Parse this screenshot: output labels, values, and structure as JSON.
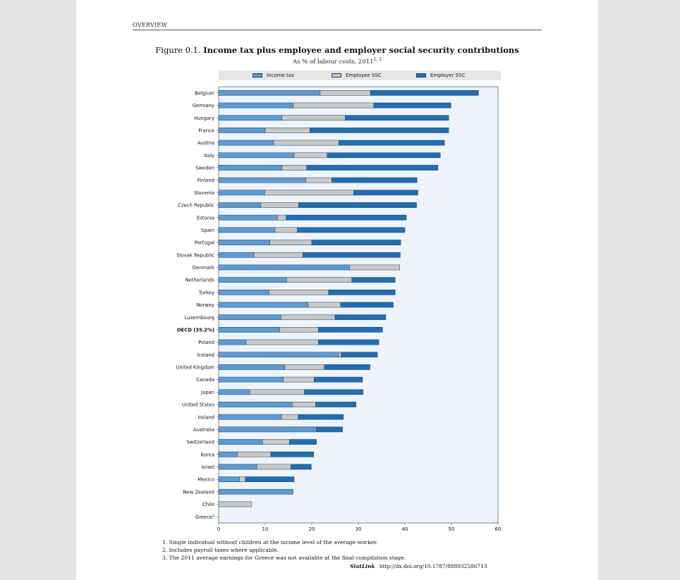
{
  "header": {
    "section": "OVERVIEW"
  },
  "figure": {
    "number": "Figure 0.1.",
    "title": "Income tax plus employee and employer social security contributions",
    "subtitle": "As % of labour costs, 2011",
    "subtitle_sup": "1, 2"
  },
  "colors": {
    "income_tax": "#5b9bd5",
    "employee_ssc": "#c8c8c8",
    "employer_ssc": "#1f6fb5",
    "plot_bg": "#eef4fa",
    "border": "#1f3f66"
  },
  "chart_data": {
    "type": "bar",
    "orientation": "horizontal",
    "stacked": true,
    "xlim": [
      0,
      60
    ],
    "xticks": [
      "0",
      "10",
      "20",
      "30",
      "40",
      "50",
      "60"
    ],
    "grid": false,
    "legend_position": "top",
    "categories": [
      "Belgium",
      "Germany",
      "Hungary",
      "France",
      "Austria",
      "Italy",
      "Sweden",
      "Finland",
      "Slovenia",
      "Czech Republic",
      "Estonia",
      "Spain",
      "Portugal",
      "Slovak Republic",
      "Denmark",
      "Netherlands",
      "Turkey",
      "Norway",
      "Luxembourg",
      "OECD (35.2%)",
      "Poland",
      "Iceland",
      "United Kingdom",
      "Canada",
      "Japan",
      "United States",
      "Ireland",
      "Australia",
      "Switzerland",
      "Korea",
      "Israel",
      "Mexico",
      "New Zealand",
      "Chile",
      "Greece"
    ],
    "category_sup": {
      "Greece": "3"
    },
    "bold_categories": [
      "OECD (35.2%)"
    ],
    "series": [
      {
        "name": "Income tax",
        "values": [
          21.8,
          16.0,
          13.6,
          10.0,
          11.8,
          16.2,
          13.6,
          18.7,
          9.9,
          9.0,
          12.6,
          12.1,
          11.0,
          7.6,
          28.1,
          14.6,
          10.8,
          19.2,
          13.4,
          13.1,
          5.9,
          25.8,
          14.2,
          13.9,
          6.7,
          15.8,
          13.5,
          21.0,
          9.4,
          4.0,
          8.2,
          4.5,
          16.0,
          0,
          0
        ]
      },
      {
        "name": "Employee SSC",
        "values": [
          10.8,
          17.3,
          13.6,
          9.6,
          14.0,
          7.1,
          5.3,
          5.6,
          19.1,
          8.2,
          1.9,
          4.8,
          9.0,
          10.5,
          10.8,
          14.0,
          12.8,
          7.0,
          11.6,
          8.3,
          15.5,
          0.5,
          8.5,
          6.6,
          11.7,
          5.0,
          3.6,
          0,
          5.8,
          7.2,
          7.3,
          1.2,
          0,
          7.1,
          0
        ]
      },
      {
        "name": "Employer SSC",
        "values": [
          23.2,
          16.6,
          22.2,
          29.8,
          22.7,
          24.3,
          28.2,
          18.3,
          13.8,
          25.3,
          25.8,
          23.1,
          19.1,
          20.9,
          0,
          9.3,
          14.3,
          11.3,
          10.9,
          13.8,
          13.0,
          7.8,
          9.8,
          10.4,
          12.6,
          8.7,
          9.7,
          5.6,
          5.8,
          9.2,
          4.4,
          10.5,
          0,
          0,
          0
        ]
      }
    ]
  },
  "notes": [
    "1.  Single individual without children at the income level of the average worker.",
    "2.  Includes payroll taxes where applicable.",
    "3.  The 2011 average earnings for Greece was not available at the final compilation stage."
  ],
  "statlink": {
    "label": "StatLink",
    "url": "http://dx.doi.org/10.1787/888932586713"
  }
}
